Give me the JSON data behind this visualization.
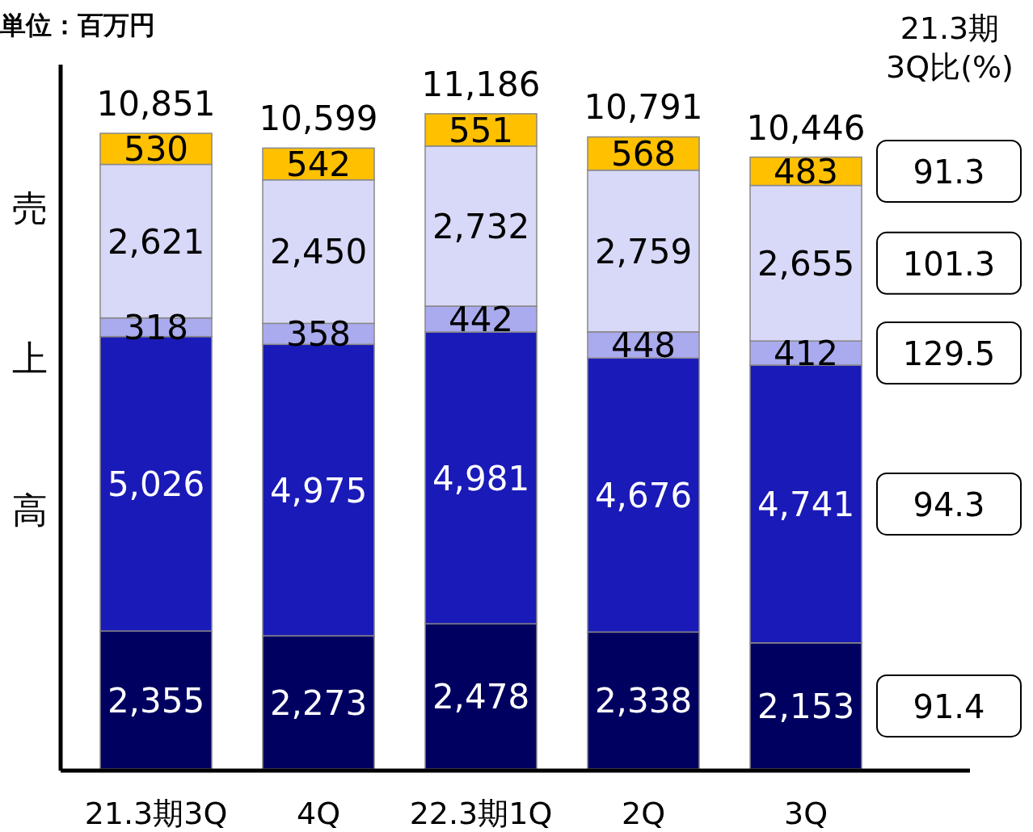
{
  "chart_data": {
    "type": "bar",
    "stacked": true,
    "ylabel": "売上高",
    "categories": [
      "21.3期3Q",
      "4Q",
      "22.3期1Q",
      "2Q",
      "3Q"
    ],
    "series": [
      {
        "color": "#000060",
        "values": [
          2355,
          2273,
          2478,
          2338,
          2153
        ],
        "value_labels": [
          "2,355",
          "2,273",
          "2,478",
          "2,338",
          "2,153"
        ]
      },
      {
        "color": "#1a1ab8",
        "values": [
          5026,
          4975,
          4981,
          4676,
          4741
        ],
        "value_labels": [
          "5,026",
          "4,975",
          "4,981",
          "4,676",
          "4,741"
        ]
      },
      {
        "color": "#aaaaee",
        "values": [
          318,
          358,
          442,
          448,
          412
        ],
        "value_labels": [
          "318",
          "358",
          "442",
          "448",
          "412"
        ]
      },
      {
        "color": "#d8d8f8",
        "values": [
          2621,
          2450,
          2732,
          2759,
          2655
        ],
        "value_labels": [
          "2,621",
          "2,450",
          "2,732",
          "2,759",
          "2,655"
        ]
      },
      {
        "color": "#ffc000",
        "values": [
          530,
          542,
          551,
          568,
          483
        ],
        "value_labels": [
          "530",
          "542",
          "551",
          "568",
          "483"
        ]
      }
    ],
    "totals": [
      "10,851",
      "10,599",
      "11,186",
      "10,791",
      "10,446"
    ],
    "annotations": [
      "単位：百万円",
      "21.3期\n3Q比(%)",
      "91.4",
      "94.3",
      "129.5",
      "101.3",
      "91.3"
    ]
  }
}
